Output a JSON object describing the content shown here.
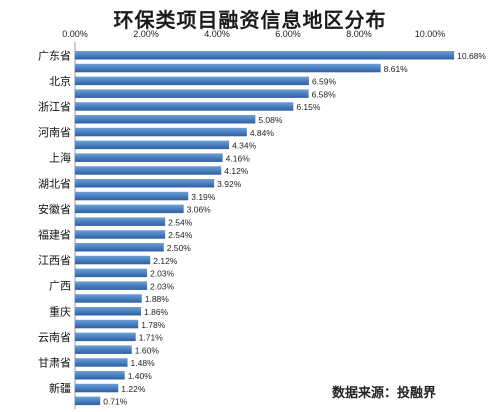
{
  "chart_data": {
    "type": "bar",
    "orientation": "horizontal",
    "title": "环保类项目融资信息地区分布",
    "source_label": "数据来源：投融界",
    "x_axis": {
      "ticks": [
        "0.00%",
        "2.00%",
        "4.00%",
        "6.00%",
        "8.00%",
        "10.00%"
      ],
      "range": [
        0,
        10
      ],
      "position": "top",
      "grid": false
    },
    "category_labels": [
      "广东省",
      "北京",
      "浙江省",
      "河南省",
      "上海",
      "湖北省",
      "安徽省",
      "福建省",
      "江西省",
      "广西",
      "重庆",
      "云南省",
      "甘肃省",
      "新疆"
    ],
    "values": [
      10.68,
      8.61,
      6.59,
      6.58,
      6.15,
      5.08,
      4.84,
      4.34,
      4.16,
      4.12,
      3.92,
      3.19,
      3.06,
      2.54,
      2.54,
      2.5,
      2.12,
      2.03,
      2.03,
      1.88,
      1.86,
      1.78,
      1.71,
      1.6,
      1.48,
      1.4,
      1.22,
      0.71
    ],
    "value_labels": [
      "10.68%",
      "8.61%",
      "6.59%",
      "6.58%",
      "6.15%",
      "5.08%",
      "4.84%",
      "4.34%",
      "4.16%",
      "4.12%",
      "3.92%",
      "3.19%",
      "3.06%",
      "2.54%",
      "2.54%",
      "2.50%",
      "2.12%",
      "2.03%",
      "2.03%",
      "1.88%",
      "1.86%",
      "1.78%",
      "1.71%",
      "1.60%",
      "1.48%",
      "1.40%",
      "1.22%",
      "0.71%"
    ],
    "bar_color": "#4a7fc1"
  }
}
